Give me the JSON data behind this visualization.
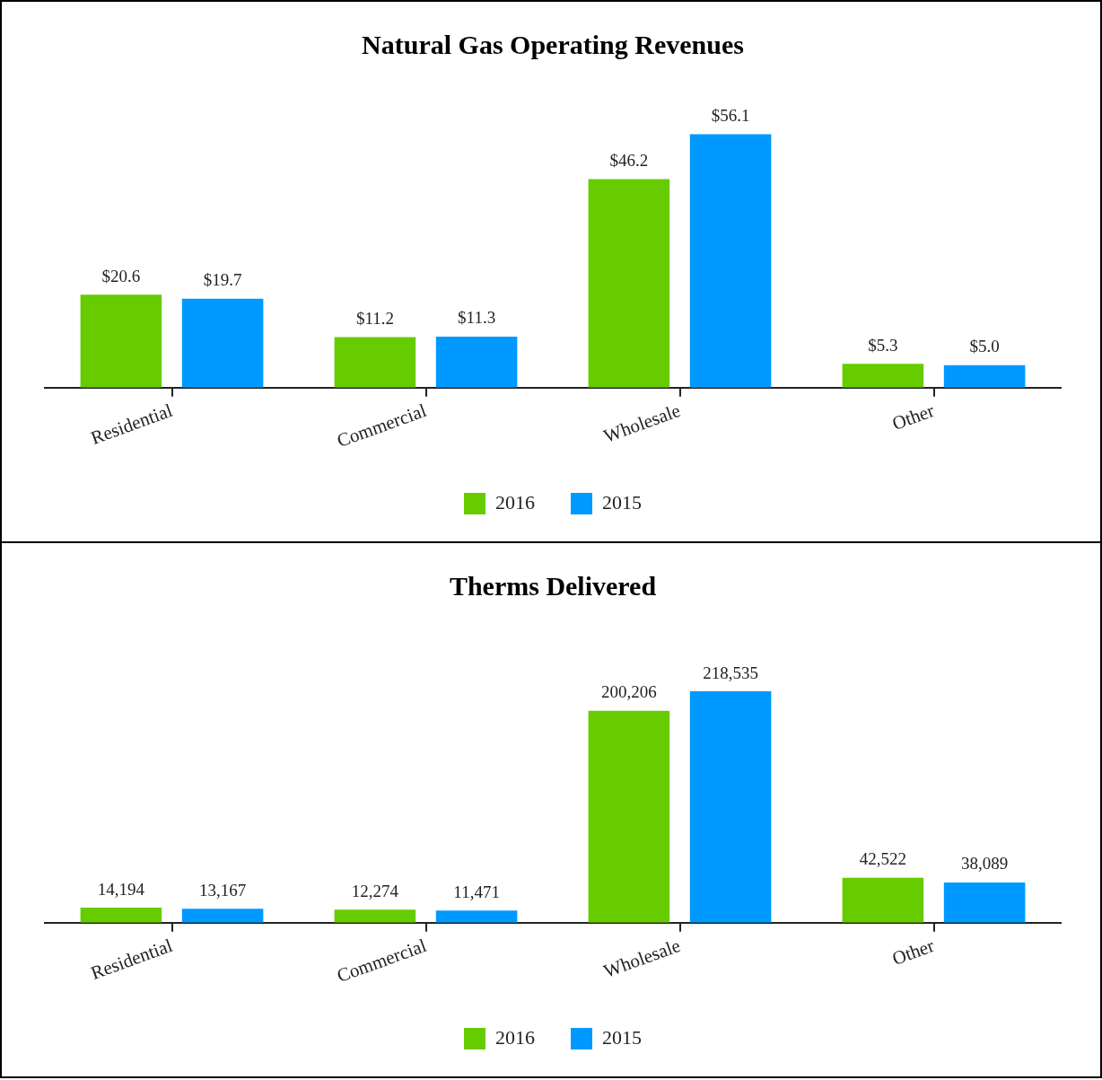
{
  "chart_data": [
    {
      "type": "bar",
      "title": "Natural Gas Operating Revenues",
      "categories": [
        "Residential",
        "Commercial",
        "Wholesale",
        "Other"
      ],
      "tick_labels": "x",
      "legend": "bottom",
      "grid": false,
      "series": [
        {
          "name": "2016",
          "color": "#66cc00",
          "values": [
            20.6,
            11.2,
            46.2,
            5.3
          ],
          "value_labels": [
            "$20.6",
            "$11.2",
            "$46.2",
            "$5.3"
          ]
        },
        {
          "name": "2015",
          "color": "#0099ff",
          "values": [
            19.7,
            11.3,
            56.1,
            5.0
          ],
          "value_labels": [
            "$19.7",
            "$11.3",
            "$56.1",
            "$5.0"
          ]
        }
      ]
    },
    {
      "type": "bar",
      "title": "Therms Delivered",
      "categories": [
        "Residential",
        "Commercial",
        "Wholesale",
        "Other"
      ],
      "tick_labels": "x",
      "legend": "bottom",
      "grid": false,
      "series": [
        {
          "name": "2016",
          "color": "#66cc00",
          "values": [
            14194,
            12274,
            200206,
            42522
          ],
          "value_labels": [
            "14,194",
            "12,274",
            "200,206",
            "42,522"
          ]
        },
        {
          "name": "2015",
          "color": "#0099ff",
          "values": [
            13167,
            11471,
            218535,
            38089
          ],
          "value_labels": [
            "13,167",
            "11,471",
            "218,535",
            "38,089"
          ]
        }
      ]
    }
  ]
}
